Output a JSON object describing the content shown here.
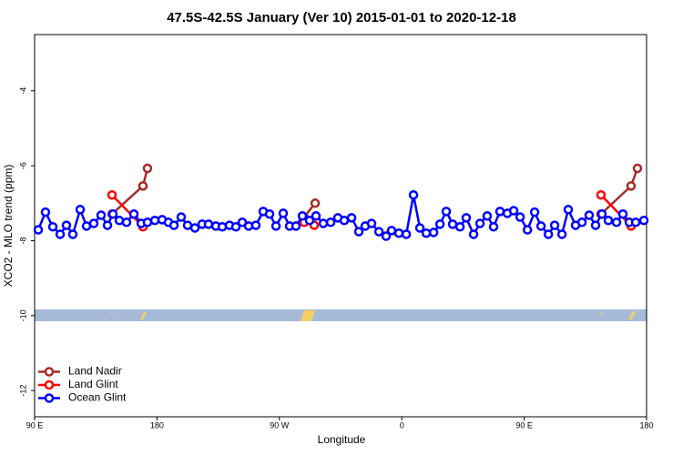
{
  "chart_data": {
    "type": "line",
    "title": "47.5S-42.5S January (Ver 10)   2015-01-01 to 2020-12-18",
    "x_label": "Longitude",
    "y_label": "XCO2 - MLO trend (ppm)",
    "xlim": [
      90,
      540
    ],
    "xticks": [
      {
        "value": 90,
        "label": "90 E"
      },
      180,
      {
        "value": 270,
        "label": "90 W"
      },
      {
        "value": 360,
        "label": "0"
      },
      {
        "value": 450,
        "label": "90 E"
      },
      {
        "value": 540,
        "label": "180"
      }
    ],
    "ylim": [
      -12.7,
      -2.5
    ],
    "yticks": [
      -12,
      -10,
      -8,
      -6,
      -4
    ],
    "legend": "bottomleft",
    "series": [
      {
        "name": "Land Nadir",
        "color": "#a52a2a",
        "x": [
          146.9,
          169.7,
          173.0,
          null,
          288.2,
          296.3,
          null,
          506.5,
          528.6,
          533.3
        ],
        "values": [
          -7.29,
          -6.54,
          -6.07,
          null,
          -7.37,
          -7.0,
          null,
          -7.29,
          -6.54,
          -6.07
        ]
      },
      {
        "name": "Land Glint",
        "color": "#ff0000",
        "x": [
          146.9,
          169.7,
          null,
          288.2,
          295.6,
          null,
          506.5,
          528.6
        ],
        "values": [
          -6.78,
          -7.63,
          null,
          -7.51,
          -7.59,
          null,
          -6.78,
          -7.61
        ]
      },
      {
        "name": "Ocean Glint",
        "color": "#0000ff",
        "x": [
          92.7,
          98.0,
          103.4,
          108.8,
          113.4,
          118.1,
          123.5,
          128.2,
          133.5,
          138.9,
          143.6,
          147.6,
          152.3,
          157.6,
          163.0,
          168.4,
          173.0,
          178.4,
          183.8,
          188.4,
          192.5,
          197.8,
          202.5,
          207.9,
          213.2,
          217.9,
          223.3,
          228.0,
          233.3,
          238.0,
          242.7,
          247.4,
          252.7,
          258.1,
          262.8,
          267.5,
          272.8,
          277.5,
          282.2,
          286.9,
          292.2,
          296.9,
          302.3,
          307.7,
          313.0,
          317.7,
          323.1,
          328.4,
          333.1,
          337.8,
          343.2,
          348.5,
          352.5,
          357.9,
          363.3,
          368.6,
          373.3,
          378.0,
          383.4,
          388.1,
          392.7,
          397.4,
          402.8,
          407.4,
          412.8,
          417.5,
          422.8,
          427.5,
          432.2,
          437.6,
          442.3,
          447.0,
          452.4,
          457.7,
          462.4,
          467.8,
          472.4,
          477.8,
          482.4,
          487.8,
          492.5,
          497.8,
          502.5,
          507.2,
          511.9,
          517.9,
          522.6,
          527.3,
          532.0,
          538.0
        ],
        "values": [
          -7.71,
          -7.24,
          -7.63,
          -7.83,
          -7.59,
          -7.83,
          -7.17,
          -7.61,
          -7.54,
          -7.32,
          -7.59,
          -7.29,
          -7.46,
          -7.51,
          -7.29,
          -7.54,
          -7.51,
          -7.46,
          -7.44,
          -7.51,
          -7.59,
          -7.37,
          -7.59,
          -7.66,
          -7.56,
          -7.56,
          -7.61,
          -7.63,
          -7.59,
          -7.63,
          -7.51,
          -7.61,
          -7.59,
          -7.22,
          -7.29,
          -7.61,
          -7.27,
          -7.61,
          -7.61,
          -7.34,
          -7.46,
          -7.34,
          -7.54,
          -7.51,
          -7.39,
          -7.46,
          -7.39,
          -7.76,
          -7.61,
          -7.54,
          -7.76,
          -7.88,
          -7.73,
          -7.8,
          -7.83,
          -6.78,
          -7.66,
          -7.8,
          -7.78,
          -7.56,
          -7.22,
          -7.56,
          -7.63,
          -7.39,
          -7.83,
          -7.54,
          -7.34,
          -7.63,
          -7.22,
          -7.27,
          -7.2,
          -7.37,
          -7.71,
          -7.24,
          -7.61,
          -7.83,
          -7.59,
          -7.83,
          -7.17,
          -7.59,
          -7.51,
          -7.32,
          -7.59,
          -7.29,
          -7.46,
          -7.51,
          -7.29,
          -7.51,
          -7.51,
          -7.46
        ]
      }
    ]
  }
}
